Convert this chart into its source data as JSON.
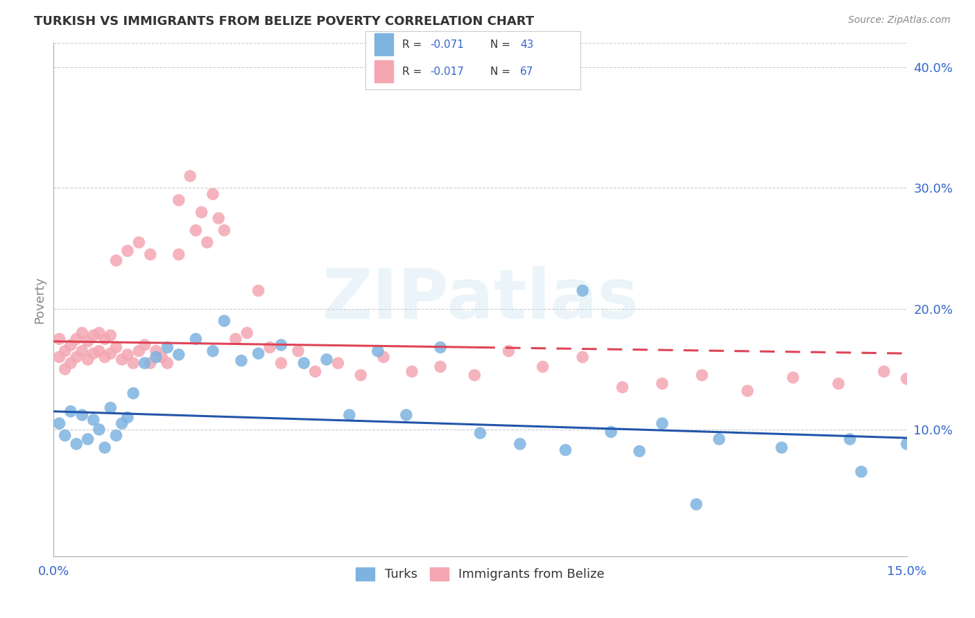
{
  "title": "TURKISH VS IMMIGRANTS FROM BELIZE POVERTY CORRELATION CHART",
  "source": "Source: ZipAtlas.com",
  "ylabel": "Poverty",
  "watermark": "ZIPatlas",
  "xlim": [
    0.0,
    0.15
  ],
  "ylim": [
    -0.005,
    0.42
  ],
  "yticks": [
    0.1,
    0.2,
    0.3,
    0.4
  ],
  "ytick_labels": [
    "10.0%",
    "20.0%",
    "30.0%",
    "40.0%"
  ],
  "xticks": [
    0.0,
    0.03,
    0.06,
    0.09,
    0.12,
    0.15
  ],
  "xtick_labels": [
    "0.0%",
    "",
    "",
    "",
    "",
    "15.0%"
  ],
  "color_turks": "#7EB3E0",
  "color_belize": "#F4A7B2",
  "color_line_turks": "#2255AA",
  "color_line_belize": "#DD4455",
  "color_axis_labels": "#3366CC",
  "legend_r1": "R = -0.071",
  "legend_n1": "N = 43",
  "legend_r2": "R = -0.017",
  "legend_n2": "N = 67",
  "turks_line_x0": 0.0,
  "turks_line_y0": 0.115,
  "turks_line_x1": 0.15,
  "turks_line_y1": 0.093,
  "belize_line_x0": 0.0,
  "belize_line_y0": 0.173,
  "belize_line_x1": 0.15,
  "belize_line_y1": 0.163,
  "turks_x": [
    0.001,
    0.002,
    0.003,
    0.004,
    0.005,
    0.006,
    0.007,
    0.008,
    0.009,
    0.01,
    0.011,
    0.012,
    0.013,
    0.014,
    0.016,
    0.018,
    0.02,
    0.022,
    0.025,
    0.028,
    0.03,
    0.033,
    0.036,
    0.04,
    0.044,
    0.048,
    0.052,
    0.057,
    0.062,
    0.068,
    0.075,
    0.082,
    0.09,
    0.098,
    0.107,
    0.117,
    0.128,
    0.14,
    0.15,
    0.093,
    0.103,
    0.113,
    0.142
  ],
  "turks_y": [
    0.105,
    0.095,
    0.115,
    0.088,
    0.112,
    0.092,
    0.108,
    0.1,
    0.085,
    0.118,
    0.095,
    0.105,
    0.11,
    0.13,
    0.155,
    0.16,
    0.168,
    0.162,
    0.175,
    0.165,
    0.19,
    0.157,
    0.163,
    0.17,
    0.155,
    0.158,
    0.112,
    0.165,
    0.112,
    0.168,
    0.097,
    0.088,
    0.083,
    0.098,
    0.105,
    0.092,
    0.085,
    0.092,
    0.088,
    0.215,
    0.082,
    0.038,
    0.065
  ],
  "belize_x": [
    0.001,
    0.001,
    0.002,
    0.002,
    0.003,
    0.003,
    0.004,
    0.004,
    0.005,
    0.005,
    0.006,
    0.006,
    0.007,
    0.007,
    0.008,
    0.008,
    0.009,
    0.009,
    0.01,
    0.01,
    0.011,
    0.012,
    0.013,
    0.014,
    0.015,
    0.016,
    0.017,
    0.018,
    0.019,
    0.02,
    0.022,
    0.024,
    0.026,
    0.028,
    0.03,
    0.032,
    0.034,
    0.036,
    0.038,
    0.04,
    0.043,
    0.046,
    0.05,
    0.054,
    0.058,
    0.063,
    0.068,
    0.074,
    0.08,
    0.086,
    0.093,
    0.1,
    0.107,
    0.114,
    0.122,
    0.13,
    0.138,
    0.146,
    0.15,
    0.022,
    0.025,
    0.027,
    0.029,
    0.011,
    0.013,
    0.015,
    0.017
  ],
  "belize_y": [
    0.175,
    0.16,
    0.165,
    0.15,
    0.17,
    0.155,
    0.175,
    0.16,
    0.18,
    0.165,
    0.173,
    0.158,
    0.178,
    0.163,
    0.18,
    0.165,
    0.175,
    0.16,
    0.178,
    0.163,
    0.168,
    0.158,
    0.162,
    0.155,
    0.165,
    0.17,
    0.155,
    0.165,
    0.16,
    0.155,
    0.29,
    0.31,
    0.28,
    0.295,
    0.265,
    0.175,
    0.18,
    0.215,
    0.168,
    0.155,
    0.165,
    0.148,
    0.155,
    0.145,
    0.16,
    0.148,
    0.152,
    0.145,
    0.165,
    0.152,
    0.16,
    0.135,
    0.138,
    0.145,
    0.132,
    0.143,
    0.138,
    0.148,
    0.142,
    0.245,
    0.265,
    0.255,
    0.275,
    0.24,
    0.248,
    0.255,
    0.245
  ]
}
